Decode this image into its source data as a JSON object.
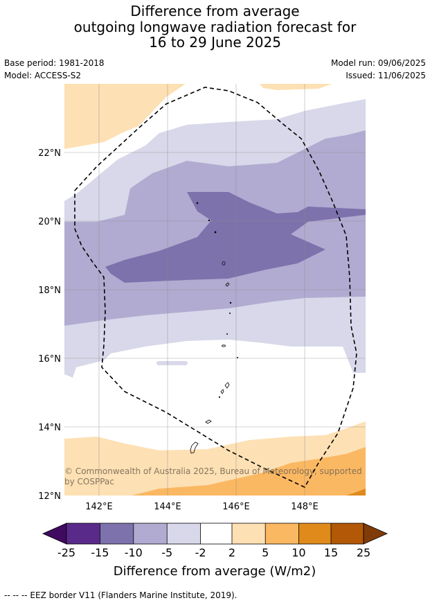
{
  "title": {
    "line1": "Difference from average",
    "line2": "outgoing longwave radiation forecast for",
    "line3": "16 to 29 June 2025"
  },
  "meta": {
    "base_period": "Base period: 1981-2018",
    "model": "Model: ACCESS-S2",
    "model_run": "Model run: 09/06/2025",
    "issued": "Issued: 11/06/2025"
  },
  "map": {
    "lat_labels": [
      "22°N",
      "20°N",
      "18°N",
      "16°N",
      "14°N",
      "12°N"
    ],
    "lon_labels": [
      "142°E",
      "144°E",
      "146°E",
      "148°E"
    ],
    "copyright_line1": "© Commonwealth of Australia 2025, Bureau of Meteorology, supported",
    "copyright_line2": "by COSPPac",
    "colors": {
      "c_neg25": "#3f0a5f",
      "c_neg15": "#5a2a8a",
      "c_neg10": "#7e72ad",
      "c_neg5": "#b1abd1",
      "c_neg2": "#d8d8ea",
      "c_zero": "#ffffff",
      "c_pos2": "#fde0b4",
      "c_pos5": "#fbb862",
      "c_pos10": "#e08a1c",
      "c_pos15": "#b35807",
      "c_pos25": "#7f3b08"
    }
  },
  "colorbar": {
    "ticks": [
      "-25",
      "-15",
      "-10",
      "-5",
      "-2",
      "2",
      "5",
      "10",
      "15",
      "25"
    ],
    "label": "Difference from average (W/m2)"
  },
  "footer": "--  --  -- EEZ border V11 (Flanders Marine Institute, 2019)."
}
